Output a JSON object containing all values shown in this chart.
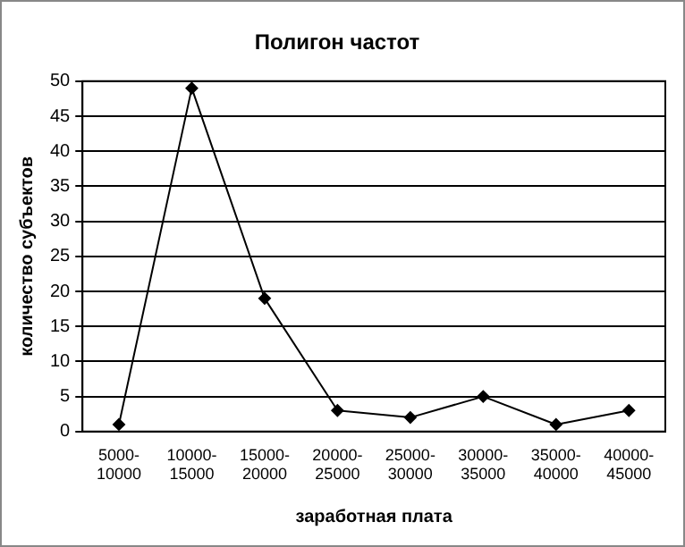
{
  "chart_data": {
    "type": "line",
    "title": "Полигон частот",
    "xlabel": "заработная плата",
    "ylabel": "количество субъектов",
    "categories": [
      "5000-10000",
      "10000-15000",
      "15000-20000",
      "20000-25000",
      "25000-30000",
      "30000-35000",
      "35000-40000",
      "40000-45000"
    ],
    "series": [
      {
        "color": "#000000",
        "values": [
          1,
          49,
          19,
          3,
          2,
          5,
          1,
          3
        ]
      }
    ],
    "ylim": [
      0,
      50
    ],
    "yticks": [
      0,
      5,
      10,
      15,
      20,
      25,
      30,
      35,
      40,
      45,
      50
    ],
    "grid": "y",
    "legend": false,
    "marker": "diamond",
    "line_style": "solid"
  }
}
